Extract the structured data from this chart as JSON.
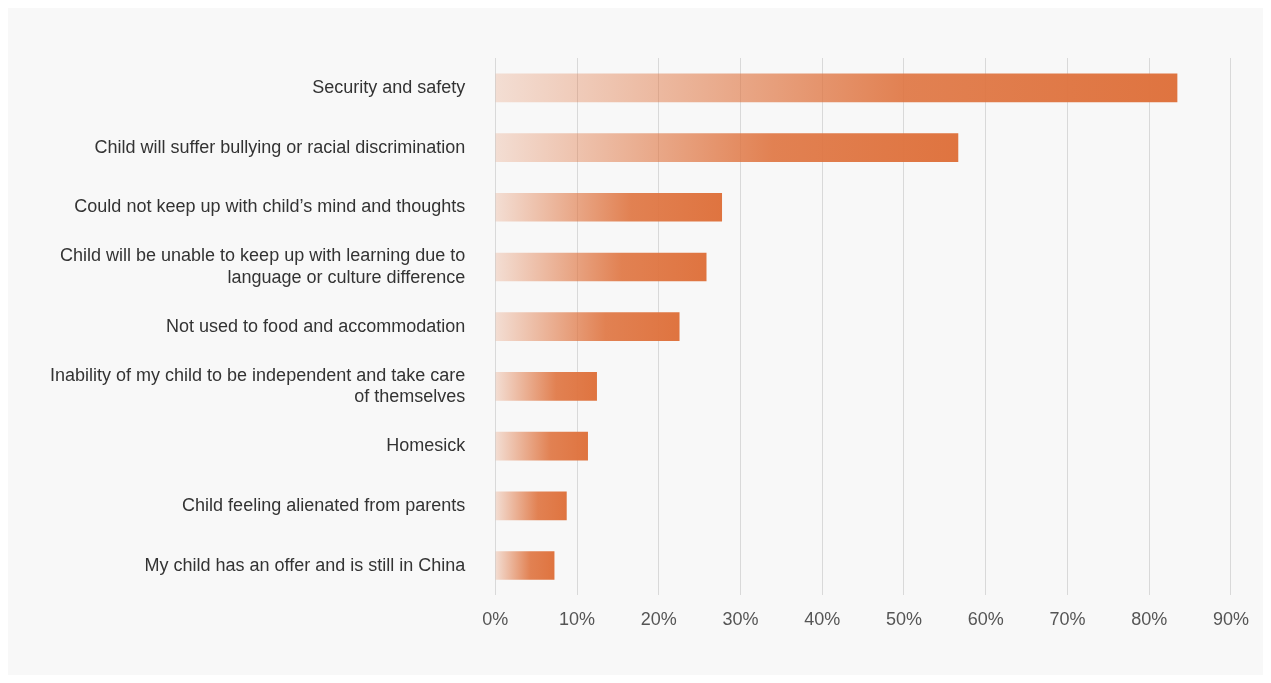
{
  "chart_data": {
    "type": "bar",
    "orientation": "horizontal",
    "categories": [
      "Security and safety",
      "Child will suffer bullying or racial discrimination",
      "Could not keep up with child’s mind and thoughts",
      "Child will be unable to keep up with learning due to language or culture difference",
      "Not used to food and accommodation",
      "Inability of my child to be independent and take care of themselves",
      "Homesick",
      "Child feeling alienated from parents",
      "My child has an offer and is still in China"
    ],
    "values": [
      83.4,
      56.6,
      27.7,
      25.8,
      22.5,
      12.4,
      11.3,
      8.7,
      7.2
    ],
    "color": "#df7440",
    "xlim": [
      0,
      90
    ],
    "xticks": [
      {
        "value": 0,
        "label": "0%"
      },
      {
        "value": 10,
        "label": "10%"
      },
      {
        "value": 20,
        "label": "20%"
      },
      {
        "value": 30,
        "label": "30%"
      },
      {
        "value": 40,
        "label": "40%"
      },
      {
        "value": 50,
        "label": "50%"
      },
      {
        "value": 60,
        "label": "60%"
      },
      {
        "value": 70,
        "label": "70%"
      },
      {
        "value": 80,
        "label": "80%"
      },
      {
        "value": 90,
        "label": "90%"
      }
    ],
    "grid": "x",
    "legend": false
  }
}
